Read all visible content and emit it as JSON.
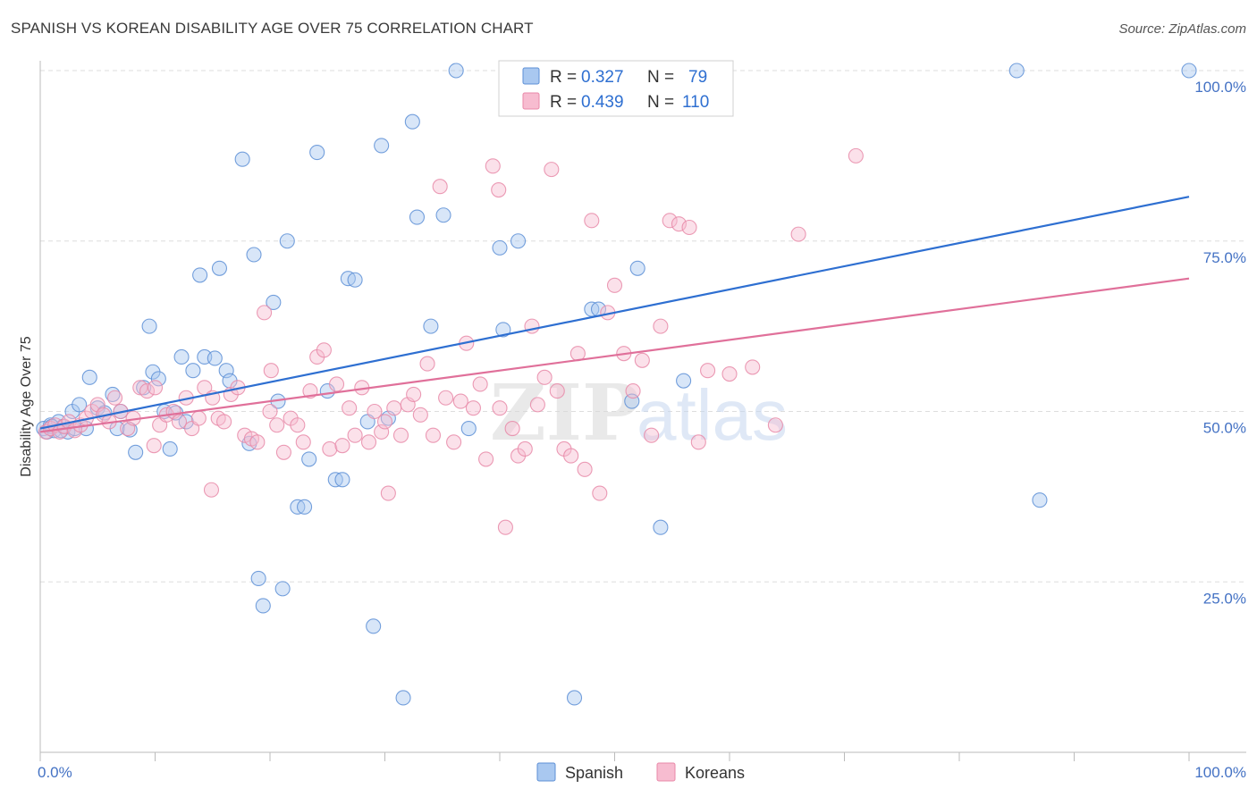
{
  "header": {
    "title": "SPANISH VS KOREAN DISABILITY AGE OVER 75 CORRELATION CHART",
    "source": "Source: ZipAtlas.com"
  },
  "watermark": "ZIPatlas",
  "colors": {
    "spanish_fill": "#a9c8f0",
    "spanish_stroke": "#5d8fd6",
    "spanish_line": "#2e6fd1",
    "korean_fill": "#f7bcd0",
    "korean_stroke": "#e889a8",
    "korean_line": "#e0709a",
    "grid": "#dddddd",
    "tick_text": "#4472c4"
  },
  "legend": {
    "rows": [
      {
        "r_label": "R =",
        "r_value": "0.327",
        "n_label": "N =",
        "n_value": "79"
      },
      {
        "r_label": "R =",
        "r_value": "0.439",
        "n_label": "N =",
        "n_value": "110"
      }
    ]
  },
  "bottom_legend": {
    "items": [
      {
        "label": "Spanish"
      },
      {
        "label": "Koreans"
      }
    ]
  },
  "chart_data": {
    "type": "scatter",
    "title": "SPANISH VS KOREAN DISABILITY AGE OVER 75 CORRELATION CHART",
    "xlabel": "",
    "ylabel": "Disability Age Over 75",
    "xlim": [
      0,
      100
    ],
    "ylim": [
      0,
      100
    ],
    "x_tick_labels": {
      "left": "0.0%",
      "right": "100.0%"
    },
    "y_ticks": [
      {
        "value": 100,
        "label": "100.0%"
      },
      {
        "value": 75,
        "label": "75.0%"
      },
      {
        "value": 50,
        "label": "50.0%"
      },
      {
        "value": 25,
        "label": "25.0%"
      }
    ],
    "grid": true,
    "legend_position": "top-center",
    "series": [
      {
        "name": "Spanish",
        "R": 0.327,
        "N": 79,
        "trend": {
          "x": [
            0,
            100
          ],
          "y": [
            47.5,
            81.5
          ]
        },
        "points": [
          [
            0.3,
            47.5
          ],
          [
            0.6,
            47.0
          ],
          [
            0.9,
            48.0
          ],
          [
            1.2,
            47.2
          ],
          [
            1.6,
            48.5
          ],
          [
            2.0,
            47.8
          ],
          [
            2.4,
            47.0
          ],
          [
            2.8,
            50.0
          ],
          [
            3.4,
            51.0
          ],
          [
            4.0,
            47.5
          ],
          [
            4.3,
            55.0
          ],
          [
            5.0,
            50.5
          ],
          [
            5.6,
            49.8
          ],
          [
            6.3,
            52.5
          ],
          [
            6.7,
            47.5
          ],
          [
            7.0,
            50.0
          ],
          [
            7.8,
            47.3
          ],
          [
            8.3,
            44.0
          ],
          [
            9.0,
            53.5
          ],
          [
            9.5,
            62.5
          ],
          [
            9.8,
            55.8
          ],
          [
            10.3,
            54.8
          ],
          [
            10.8,
            50.0
          ],
          [
            11.3,
            44.5
          ],
          [
            11.8,
            49.8
          ],
          [
            12.3,
            58.0
          ],
          [
            12.7,
            48.5
          ],
          [
            13.3,
            56.0
          ],
          [
            13.9,
            70.0
          ],
          [
            14.3,
            58.0
          ],
          [
            15.2,
            57.8
          ],
          [
            15.6,
            71.0
          ],
          [
            16.2,
            56.0
          ],
          [
            16.5,
            54.5
          ],
          [
            17.6,
            87.0
          ],
          [
            18.2,
            45.3
          ],
          [
            18.6,
            73.0
          ],
          [
            19.0,
            25.5
          ],
          [
            19.4,
            21.5
          ],
          [
            20.3,
            66.0
          ],
          [
            20.7,
            51.5
          ],
          [
            21.1,
            24.0
          ],
          [
            21.5,
            75.0
          ],
          [
            22.4,
            36.0
          ],
          [
            23.0,
            36.0
          ],
          [
            23.4,
            43.0
          ],
          [
            24.1,
            88.0
          ],
          [
            25.0,
            53.0
          ],
          [
            25.7,
            40.0
          ],
          [
            26.3,
            40.0
          ],
          [
            26.8,
            69.5
          ],
          [
            27.4,
            69.3
          ],
          [
            28.5,
            48.5
          ],
          [
            29.0,
            18.5
          ],
          [
            29.7,
            89.0
          ],
          [
            30.3,
            49.0
          ],
          [
            31.6,
            8.0
          ],
          [
            32.4,
            92.5
          ],
          [
            32.8,
            78.5
          ],
          [
            34.0,
            62.5
          ],
          [
            35.1,
            78.8
          ],
          [
            36.2,
            100.0
          ],
          [
            37.3,
            47.5
          ],
          [
            40.0,
            74.0
          ],
          [
            40.3,
            62.0
          ],
          [
            41.6,
            75.0
          ],
          [
            46.5,
            8.0
          ],
          [
            48.0,
            65.0
          ],
          [
            48.6,
            65.0
          ],
          [
            51.5,
            51.5
          ],
          [
            52.0,
            71.0
          ],
          [
            54.0,
            33.0
          ],
          [
            56.0,
            54.5
          ],
          [
            85.0,
            100.0
          ],
          [
            87.0,
            37.0
          ],
          [
            100.0,
            100.0
          ],
          [
            1.0,
            47.8
          ],
          [
            1.8,
            47.2
          ],
          [
            3.0,
            47.5
          ]
        ]
      },
      {
        "name": "Koreans",
        "R": 0.439,
        "N": 110,
        "trend": {
          "x": [
            0,
            100
          ],
          "y": [
            47.0,
            69.5
          ]
        },
        "points": [
          [
            0.5,
            47.0
          ],
          [
            0.9,
            47.5
          ],
          [
            1.3,
            48.0
          ],
          [
            1.7,
            47.0
          ],
          [
            2.1,
            47.8
          ],
          [
            2.5,
            48.5
          ],
          [
            3.0,
            47.2
          ],
          [
            3.5,
            48.0
          ],
          [
            4.0,
            49.0
          ],
          [
            4.5,
            50.0
          ],
          [
            5.0,
            51.0
          ],
          [
            5.5,
            49.5
          ],
          [
            6.0,
            48.5
          ],
          [
            6.5,
            52.0
          ],
          [
            7.0,
            50.0
          ],
          [
            7.6,
            47.5
          ],
          [
            8.1,
            49.0
          ],
          [
            8.7,
            53.5
          ],
          [
            9.3,
            53.0
          ],
          [
            9.9,
            45.0
          ],
          [
            10.4,
            48.0
          ],
          [
            11.0,
            49.5
          ],
          [
            11.6,
            50.0
          ],
          [
            12.1,
            48.5
          ],
          [
            12.7,
            52.0
          ],
          [
            13.2,
            47.5
          ],
          [
            13.8,
            49.0
          ],
          [
            14.3,
            53.5
          ],
          [
            14.9,
            38.5
          ],
          [
            15.5,
            49.0
          ],
          [
            16.0,
            48.5
          ],
          [
            16.6,
            52.5
          ],
          [
            17.2,
            53.5
          ],
          [
            17.8,
            46.5
          ],
          [
            18.4,
            46.0
          ],
          [
            18.9,
            45.5
          ],
          [
            19.5,
            64.5
          ],
          [
            20.1,
            56.0
          ],
          [
            20.6,
            48.0
          ],
          [
            21.2,
            44.0
          ],
          [
            21.8,
            49.0
          ],
          [
            22.4,
            48.0
          ],
          [
            22.9,
            45.5
          ],
          [
            23.5,
            53.0
          ],
          [
            24.1,
            58.0
          ],
          [
            24.7,
            59.0
          ],
          [
            25.2,
            44.5
          ],
          [
            25.8,
            54.0
          ],
          [
            26.3,
            45.0
          ],
          [
            26.9,
            50.5
          ],
          [
            27.4,
            46.5
          ],
          [
            28.0,
            53.5
          ],
          [
            28.6,
            45.5
          ],
          [
            29.1,
            50.0
          ],
          [
            29.7,
            47.0
          ],
          [
            30.3,
            38.0
          ],
          [
            30.8,
            50.5
          ],
          [
            31.4,
            46.5
          ],
          [
            32.0,
            51.0
          ],
          [
            32.5,
            52.5
          ],
          [
            33.1,
            49.5
          ],
          [
            33.7,
            57.0
          ],
          [
            34.2,
            46.5
          ],
          [
            34.8,
            83.0
          ],
          [
            35.3,
            52.0
          ],
          [
            36.0,
            45.5
          ],
          [
            36.6,
            51.5
          ],
          [
            37.1,
            60.0
          ],
          [
            37.7,
            50.5
          ],
          [
            38.3,
            54.0
          ],
          [
            38.8,
            43.0
          ],
          [
            39.4,
            86.0
          ],
          [
            39.9,
            82.5
          ],
          [
            40.5,
            33.0
          ],
          [
            41.1,
            47.5
          ],
          [
            41.6,
            43.5
          ],
          [
            42.2,
            44.5
          ],
          [
            42.8,
            62.5
          ],
          [
            43.3,
            51.0
          ],
          [
            43.9,
            55.0
          ],
          [
            44.5,
            85.5
          ],
          [
            45.0,
            53.0
          ],
          [
            45.6,
            44.5
          ],
          [
            46.2,
            43.5
          ],
          [
            46.8,
            58.5
          ],
          [
            47.4,
            41.5
          ],
          [
            48.0,
            78.0
          ],
          [
            48.7,
            38.0
          ],
          [
            49.4,
            64.5
          ],
          [
            50.0,
            68.5
          ],
          [
            50.8,
            58.5
          ],
          [
            51.6,
            53.0
          ],
          [
            52.4,
            57.5
          ],
          [
            53.2,
            46.5
          ],
          [
            54.0,
            62.5
          ],
          [
            54.8,
            78.0
          ],
          [
            55.6,
            77.5
          ],
          [
            56.5,
            77.0
          ],
          [
            57.3,
            45.5
          ],
          [
            58.1,
            56.0
          ],
          [
            60.0,
            55.5
          ],
          [
            62.0,
            56.5
          ],
          [
            64.0,
            48.0
          ],
          [
            66.0,
            76.0
          ],
          [
            71.0,
            87.5
          ],
          [
            40.0,
            50.5
          ],
          [
            30.0,
            48.5
          ],
          [
            20.0,
            50.0
          ],
          [
            15.0,
            52.0
          ],
          [
            10.0,
            53.5
          ]
        ]
      }
    ]
  }
}
